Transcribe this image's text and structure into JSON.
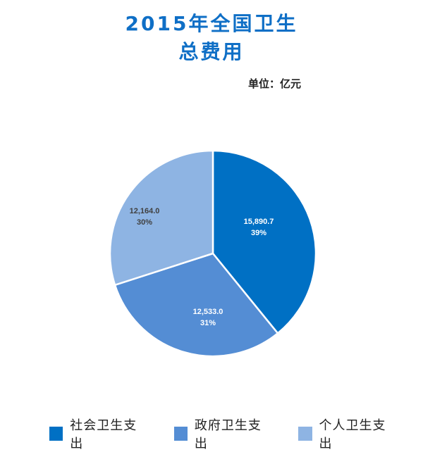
{
  "title_line1": "2015年全国卫生",
  "title_line2": "总费用",
  "unit": "单位：亿元",
  "slices": [
    {
      "label": "社会卫生支出",
      "value": "15,890.7",
      "pct": "39%",
      "color": "#0070C4",
      "text_color": "#ffffff"
    },
    {
      "label": "政府卫生支出",
      "value": "12,533.0",
      "pct": "31%",
      "color": "#548DD4",
      "text_color": "#ffffff"
    },
    {
      "label": "个人卫生支出",
      "value": "12,164.0",
      "pct": "30%",
      "color": "#8EB4E3",
      "text_color": "#404040"
    }
  ],
  "chart_data": {
    "type": "pie",
    "title": "2015年全国卫生总费用",
    "subtitle": "单位：亿元",
    "categories": [
      "社会卫生支出",
      "政府卫生支出",
      "个人卫生支出"
    ],
    "values": [
      15890.7,
      12533.0,
      12164.0
    ],
    "percentages": [
      39,
      31,
      30
    ],
    "colors": [
      "#0070C4",
      "#548DD4",
      "#8EB4E3"
    ],
    "legend_position": "bottom",
    "start_angle": "12 o'clock, clockwise"
  }
}
